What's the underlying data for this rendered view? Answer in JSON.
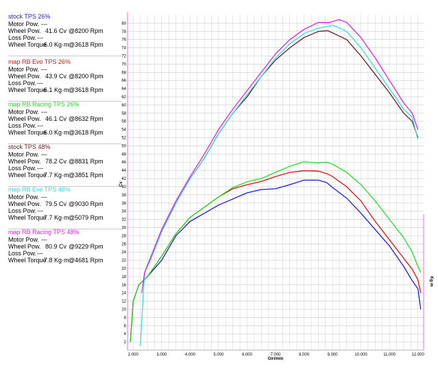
{
  "legend": [
    {
      "title": "stock TPS 26%",
      "color": "#1a1adc",
      "motor_label": "Motor Pow.",
      "motor_value": "---",
      "wheel_label": "Wheel Pow.",
      "wheel_value": "41.6 Cv",
      "wheel_rpm": "@8200 Rpm",
      "loss_label": "Loss Pow.",
      "loss_value": "---",
      "torque_label": "Wheel Torque",
      "torque_value": "6.0 Kg·m",
      "torque_rpm": "@3618 Rpm"
    },
    {
      "title": "map RB Evo TPS 26%",
      "color": "#e01010",
      "motor_label": "Motor Pow.",
      "motor_value": "---",
      "wheel_label": "Wheel Pow.",
      "wheel_value": "43.9 Cv",
      "wheel_rpm": "@8200 Rpm",
      "loss_label": "Loss Pow.",
      "loss_value": "---",
      "torque_label": "Wheel Torque",
      "torque_value": "6.1 Kg·m",
      "torque_rpm": "@3618 Rpm"
    },
    {
      "title": "map RB Racing TPS 26%",
      "color": "#22dd22",
      "motor_label": "Motor Pow.",
      "motor_value": "---",
      "wheel_label": "Wheel Pow.",
      "wheel_value": "46.1 Cv",
      "wheel_rpm": "@8632 Rpm",
      "loss_label": "Loss Pow.",
      "loss_value": "---",
      "torque_label": "Wheel Torque",
      "torque_value": "6.0 Kg·m",
      "torque_rpm": "@3618 Rpm"
    },
    {
      "title": "stock TPS 48%",
      "color": "#6a1a1a",
      "motor_label": "Motor Pow.",
      "motor_value": "---",
      "wheel_label": "Wheel Pow.",
      "wheel_value": "78.2 Cv",
      "wheel_rpm": "@8831 Rpm",
      "loss_label": "Loss Pow.",
      "loss_value": "---",
      "torque_label": "Wheel Torque",
      "torque_value": "7.7 Kg·m",
      "torque_rpm": "@3851 Rpm"
    },
    {
      "title": "map RB Evo TPS 48%",
      "color": "#2ee0e0",
      "motor_label": "Motor Pow.",
      "motor_value": "---",
      "wheel_label": "Wheel Pow.",
      "wheel_value": "79.5 Cv",
      "wheel_rpm": "@9030 Rpm",
      "loss_label": "Loss Pow.",
      "loss_value": "---",
      "torque_label": "Wheel Torque",
      "torque_value": "7.7 Kg·m",
      "torque_rpm": "@5079 Rpm"
    },
    {
      "title": "map RB Racing TPS 48%",
      "color": "#e020e0",
      "motor_label": "Motor Pow.",
      "motor_value": "---",
      "wheel_label": "Wheel Pow.",
      "wheel_value": "80.9 Cv",
      "wheel_rpm": "@9229 Rpm",
      "loss_label": "Loss Pow.",
      "loss_value": "---",
      "torque_label": "Wheel Torque",
      "torque_value": "7.8 Kg·m",
      "torque_rpm": "@4681 Rpm"
    }
  ],
  "chart_data": {
    "type": "line",
    "xlabel": "Giri/min",
    "ylabel": "Cv",
    "ylabel_right": "Kg·m",
    "xlim": [
      1800,
      12200
    ],
    "ylim": [
      0,
      82
    ],
    "grid": true,
    "x_ticks": [
      "2.000",
      "3.000",
      "4.000",
      "5.000",
      "6.000",
      "7.000",
      "8.000",
      "9.000",
      "10.000",
      "11.000",
      "12.000"
    ],
    "x_tick_values": [
      2000,
      3000,
      4000,
      5000,
      6000,
      7000,
      8000,
      9000,
      10000,
      11000,
      12000
    ],
    "y_ticks": [
      2,
      4,
      6,
      8,
      10,
      12,
      14,
      16,
      18,
      20,
      22,
      24,
      26,
      28,
      30,
      32,
      34,
      36,
      38,
      40,
      42,
      44,
      46,
      48,
      50,
      52,
      54,
      56,
      58,
      60,
      62,
      64,
      66,
      68,
      70,
      72,
      74,
      76,
      78,
      80
    ],
    "series": [
      {
        "name": "stock TPS 26%",
        "color": "#1a1adc",
        "x": [
          1900,
          2000,
          2200,
          2500,
          3000,
          3500,
          4000,
          4500,
          5000,
          5500,
          6000,
          6500,
          7000,
          7500,
          8000,
          8500,
          8800,
          9000,
          9500,
          10000,
          10500,
          11000,
          11500,
          11800,
          12000,
          12100
        ],
        "y": [
          2,
          12,
          16,
          18,
          22,
          28,
          31.5,
          33.5,
          35.5,
          37,
          38.5,
          39.3,
          39.5,
          40.5,
          41.6,
          41.6,
          41,
          39.8,
          37.2,
          33.5,
          29.5,
          25.5,
          20.5,
          17,
          15,
          10
        ]
      },
      {
        "name": "map RB Evo TPS 26%",
        "color": "#e01010",
        "x": [
          1900,
          2000,
          2200,
          2500,
          3000,
          3500,
          4000,
          4500,
          5000,
          5500,
          6000,
          6500,
          7000,
          7500,
          8000,
          8500,
          8800,
          9000,
          9500,
          10000,
          10500,
          11000,
          11500,
          11800,
          12000,
          12100
        ],
        "y": [
          2,
          12,
          16,
          18,
          23,
          28.5,
          32.5,
          35,
          37.5,
          39.5,
          40.5,
          41.3,
          42.5,
          43.5,
          43.9,
          43.8,
          43.2,
          42.5,
          40,
          36.5,
          31.5,
          27,
          22.5,
          19.8,
          17.2,
          14
        ]
      },
      {
        "name": "map RB Racing TPS 26%",
        "color": "#22dd22",
        "x": [
          1900,
          2000,
          2200,
          2500,
          3000,
          3500,
          4000,
          4500,
          5000,
          5500,
          6000,
          6500,
          7000,
          7500,
          8000,
          8500,
          8800,
          9000,
          9500,
          10000,
          10500,
          11000,
          11500,
          11800,
          12000,
          12100
        ],
        "y": [
          2,
          12,
          16,
          18,
          23,
          28.5,
          32.5,
          35,
          37.5,
          39.8,
          41.2,
          42,
          43.5,
          45,
          46.1,
          45.8,
          46,
          45.5,
          43.5,
          40.5,
          36.5,
          32,
          27.5,
          24,
          20.5,
          19
        ]
      },
      {
        "name": "stock TPS 48%",
        "color": "#6a1a1a",
        "x": [
          2400,
          2600,
          3000,
          3500,
          4000,
          4500,
          5000,
          5500,
          6000,
          6500,
          7000,
          7500,
          8000,
          8500,
          8831,
          9200,
          9500,
          10000,
          10500,
          11000,
          11500,
          11800,
          12000
        ],
        "y": [
          19,
          22,
          29,
          36,
          42,
          47,
          53,
          58,
          62,
          67,
          71,
          74,
          76.5,
          78,
          78.2,
          77,
          76,
          72,
          67.5,
          63,
          58,
          56,
          52
        ]
      },
      {
        "name": "map RB Evo TPS 48%",
        "color": "#2ee0e0",
        "x": [
          2250,
          2400,
          2600,
          3000,
          3500,
          4000,
          4500,
          5000,
          5500,
          6000,
          6500,
          7000,
          7500,
          8000,
          8500,
          9030,
          9500,
          10000,
          10500,
          11000,
          11500,
          11800,
          12000
        ],
        "y": [
          1,
          19,
          22,
          29,
          36,
          42,
          47,
          53,
          58,
          62.5,
          67,
          71.5,
          75,
          77.5,
          78.8,
          79.5,
          78,
          74,
          69,
          64,
          59,
          57,
          51.5
        ]
      },
      {
        "name": "map RB Racing TPS 48%",
        "color": "#e020e0",
        "x": [
          2300,
          2400,
          2600,
          3000,
          3500,
          4000,
          4500,
          5000,
          5500,
          6000,
          6500,
          7000,
          7500,
          8000,
          8500,
          8900,
          9229,
          9500,
          10000,
          10500,
          11000,
          11500,
          11800,
          12000
        ],
        "y": [
          14,
          19,
          22.5,
          29.5,
          36.5,
          42.5,
          48,
          54,
          59,
          63.5,
          68,
          72.5,
          76,
          78.5,
          80.2,
          80.2,
          80.9,
          80.2,
          76.5,
          71.5,
          66,
          60.5,
          58,
          54
        ]
      }
    ]
  }
}
